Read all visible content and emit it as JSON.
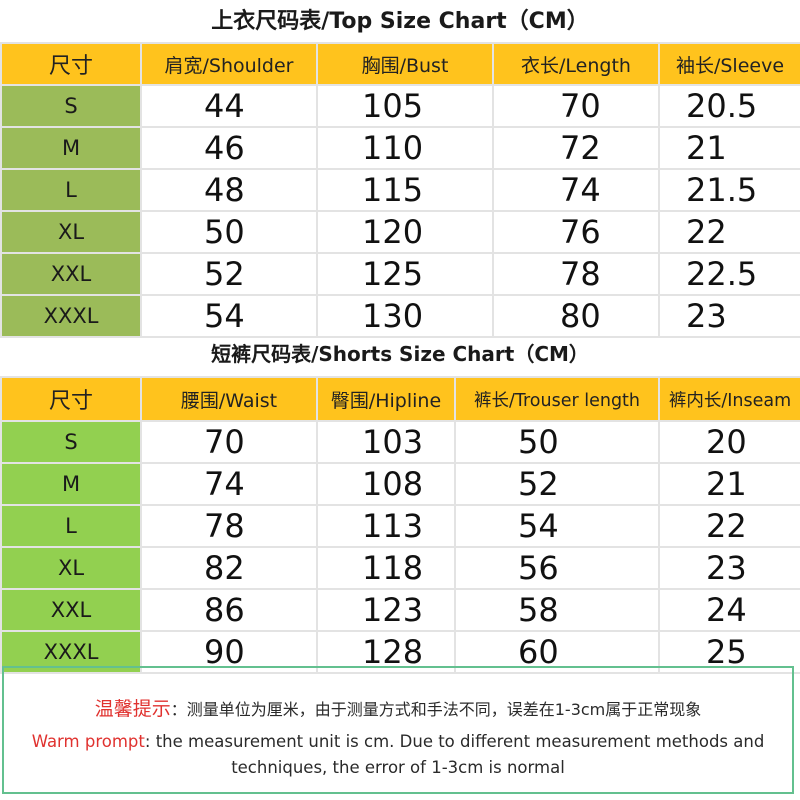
{
  "top_chart": {
    "title": "上衣尺码表/Top Size Chart（CM）",
    "headers": [
      "尺寸",
      "肩宽/Shoulder",
      "胸围/Bust",
      "衣长/Length",
      "袖长/Sleeve"
    ],
    "rows": [
      {
        "size": "S",
        "values": [
          "44",
          "105",
          "70",
          "20.5"
        ]
      },
      {
        "size": "M",
        "values": [
          "46",
          "110",
          "72",
          "21"
        ]
      },
      {
        "size": "L",
        "values": [
          "48",
          "115",
          "74",
          "21.5"
        ]
      },
      {
        "size": "XL",
        "values": [
          "50",
          "120",
          "76",
          "22"
        ]
      },
      {
        "size": "XXL",
        "values": [
          "52",
          "125",
          "78",
          "22.5"
        ]
      },
      {
        "size": "XXXL",
        "values": [
          "54",
          "130",
          "80",
          "23"
        ]
      }
    ]
  },
  "shorts_chart": {
    "title": "短裤尺码表/Shorts Size Chart（CM）",
    "headers": [
      "尺寸",
      "腰围/Waist",
      "臀围/Hipline",
      "裤长/Trouser length",
      "裤内长/Inseam"
    ],
    "rows": [
      {
        "size": "S",
        "values": [
          "70",
          "103",
          "50",
          "20"
        ]
      },
      {
        "size": "M",
        "values": [
          "74",
          "108",
          "52",
          "21"
        ]
      },
      {
        "size": "L",
        "values": [
          "78",
          "113",
          "54",
          "22"
        ]
      },
      {
        "size": "XL",
        "values": [
          "82",
          "118",
          "56",
          "23"
        ]
      },
      {
        "size": "XXL",
        "values": [
          "86",
          "123",
          "58",
          "24"
        ]
      },
      {
        "size": "XXXL",
        "values": [
          "90",
          "128",
          "60",
          "25"
        ]
      }
    ]
  },
  "notice": {
    "cn_label": "温馨提示",
    "cn_text": "：测量单位为厘米，由于测量方式和手法不同，误差在1-3cm属于正常现象",
    "en_label": "Warm prompt",
    "en_text": ": the measurement unit is cm. Due to different measurement methods and",
    "en_text_2": "techniques, the error of 1-3cm is normal"
  },
  "colors": {
    "header_bg": "#ffc31d",
    "top_size_col": "#9bbb59",
    "shorts_size_col": "#92d050",
    "notice_label": "#e0322f",
    "notice_border": "#63c08f"
  }
}
